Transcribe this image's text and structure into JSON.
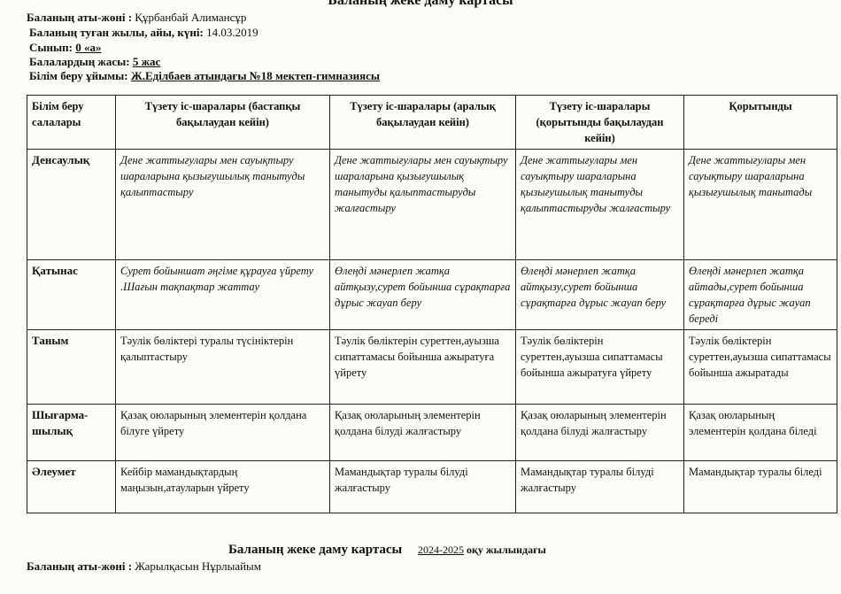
{
  "title": "Баланың жеке даму картасы",
  "info": {
    "name_label": "Баланың аты-жөні :",
    "name_value": "Құрбанбай Алимансұр",
    "birth_label": "Баланың туған жылы, айы, күні:",
    "birth_value": "14.03.2019",
    "class_label": "Сынып:",
    "class_value": "0 «а»",
    "age_label": "Балалардың жасы:",
    "age_value": "5 жас",
    "org_label": "Білім беру ұйымы:",
    "org_value": "Ж.Еділбаев атындағы №18 мектеп-гимназиясы"
  },
  "table": {
    "headers": [
      "Білім беру салалары",
      "Түзету іс-шаралары (бастапқы бақылаудан кейін)",
      "Түзету іс-шаралары (аралық бақылаудан кейін)",
      "Түзету іс-шаралары (қорытынды бақылаудан кейін)",
      "Қорытынды"
    ],
    "rows": [
      {
        "area": "Денсаулық",
        "c1": "Дене жаттығулары мен сауықтыру шараларына қызығушылық танытуды қалыптастыру",
        "c2": "Дене жаттығулары мен сауықтыру шараларына қызығушылық танытуды қалыптастыруды жалғастыру",
        "c3": "Дене жаттығулары мен сауықтыру шараларына қызығушылық танытуды қалыптастыруды жалғастыру",
        "c4": "Дене жаттығулары мен сауықтыру шараларына қызығушылық танытады"
      },
      {
        "area": "Қатынас",
        "c1": "Сурет бойыншат әңгіме құрауға үйрету .Шағын тақпақтар жаттау",
        "c2": "Өлеңді мәнерлеп жатқа айтқызу,сурет бойынша сұрақтарға дұрыс жауап беру",
        "c3": "Өлеңді мәнерлеп жатқа айтқызу,сурет бойынша сұрақтарға дұрыс жауап беру",
        "c4": "Өлеңді мәнерлеп жатқа айтады,сурет бойынша сұрақтарға дұрыс жауап береді"
      },
      {
        "area": "Таным",
        "c1": "Тәулік бөліктері туралы түсініктерін қалыптастыру",
        "c2": "Тәулік бөліктерін суреттен,ауызша сипаттамасы бойынша ажыратуға үйрету",
        "c3": "Тәулік бөліктерін суреттен,ауызша сипаттамасы бойынша ажыратуға үйрету",
        "c4": "Тәулік бөліктерін суреттен,ауызша сипаттамасы бойынша ажыратады"
      },
      {
        "area": "Шығарма-шылық",
        "c1": "Қазақ оюларының элементерін қолдана білуге үйрету",
        "c2": "Қазақ оюларының элементерін қолдана білуді жалғастыру",
        "c3": "Қазақ оюларының элементерін қолдана білуді жалғастыру",
        "c4": "Қазақ оюларының элементерін қолдана біледі"
      },
      {
        "area": "Әлеумет",
        "c1": "Кейбір мамандықтардың маңызын,атауларын үйрету",
        "c2": "Мамандықтар туралы білуді жалғастыру",
        "c3": "Мамандықтар туралы білуді жалғастыру",
        "c4": "Мамандықтар туралы біледі"
      }
    ]
  },
  "bottom": {
    "title": "Баланың жеке даму картасы",
    "year": "2024-2025",
    "year_suffix": "оқу жылындағы",
    "name_label": "Баланың аты-жөні :",
    "name_value": "Жарылқасын Нұрлыайым"
  }
}
